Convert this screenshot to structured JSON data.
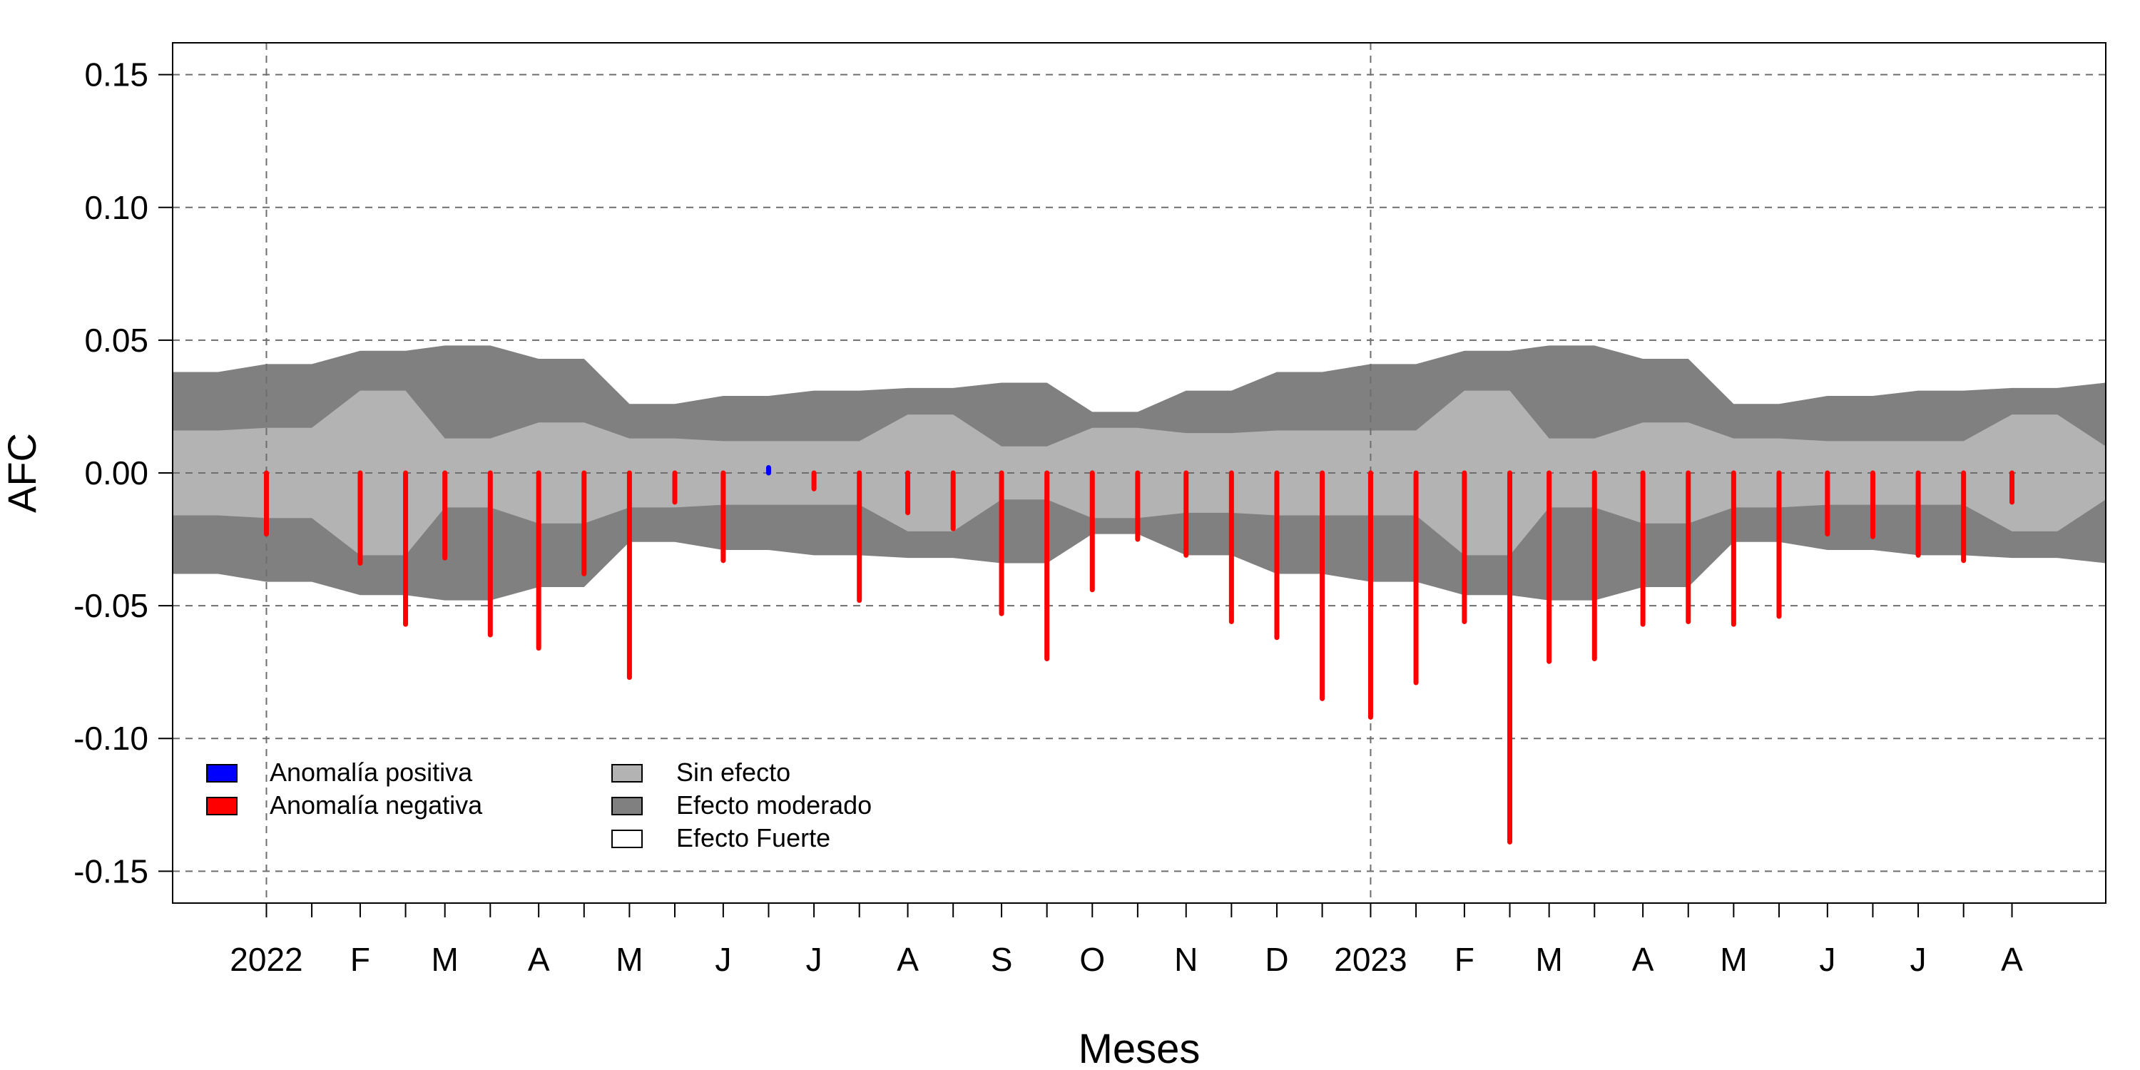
{
  "chart_data": {
    "type": "bar",
    "xlabel": "Meses",
    "ylabel": "AFC",
    "ylim": [
      -0.162,
      0.162
    ],
    "yticks": [
      -0.15,
      -0.1,
      -0.05,
      0.0,
      0.05,
      0.1,
      0.15
    ],
    "ytick_labels": [
      "-0.15",
      "-0.10",
      "-0.05",
      "0.00",
      "0.05",
      "0.10",
      "0.15"
    ],
    "grid": true,
    "legend_position": "bottom-left",
    "x_dates": [
      "2022-01-01",
      "2022-01-16",
      "2022-02-01",
      "2022-02-16",
      "2022-03-01",
      "2022-03-16",
      "2022-04-01",
      "2022-04-16",
      "2022-05-01",
      "2022-05-16",
      "2022-06-01",
      "2022-06-16",
      "2022-07-01",
      "2022-07-16",
      "2022-08-01",
      "2022-08-16",
      "2022-09-01",
      "2022-09-16",
      "2022-10-01",
      "2022-10-16",
      "2022-11-01",
      "2022-11-16",
      "2022-12-01",
      "2022-12-16",
      "2023-01-01",
      "2023-01-16",
      "2023-02-01",
      "2023-02-16",
      "2023-03-01",
      "2023-03-16",
      "2023-04-01",
      "2023-04-16",
      "2023-05-01",
      "2023-05-16",
      "2023-06-01",
      "2023-06-16",
      "2023-07-01",
      "2023-07-16",
      "2023-08-01"
    ],
    "x_range": [
      "2021-12-01",
      "2023-09-01"
    ],
    "month_labels": [
      {
        "date": "2022-01-01",
        "label": "2022"
      },
      {
        "date": "2022-02-01",
        "label": "F"
      },
      {
        "date": "2022-03-01",
        "label": "M"
      },
      {
        "date": "2022-04-01",
        "label": "A"
      },
      {
        "date": "2022-05-01",
        "label": "M"
      },
      {
        "date": "2022-06-01",
        "label": "J"
      },
      {
        "date": "2022-07-01",
        "label": "J"
      },
      {
        "date": "2022-08-01",
        "label": "A"
      },
      {
        "date": "2022-09-01",
        "label": "S"
      },
      {
        "date": "2022-10-01",
        "label": "O"
      },
      {
        "date": "2022-11-01",
        "label": "N"
      },
      {
        "date": "2022-12-01",
        "label": "D"
      },
      {
        "date": "2023-01-01",
        "label": "2023"
      },
      {
        "date": "2023-02-01",
        "label": "F"
      },
      {
        "date": "2023-03-01",
        "label": "M"
      },
      {
        "date": "2023-04-01",
        "label": "A"
      },
      {
        "date": "2023-05-01",
        "label": "M"
      },
      {
        "date": "2023-06-01",
        "label": "J"
      },
      {
        "date": "2023-07-01",
        "label": "J"
      },
      {
        "date": "2023-08-01",
        "label": "A"
      }
    ],
    "year_lines": [
      "2022-01-01",
      "2023-01-01"
    ],
    "series": [
      {
        "name": "Anomalía positiva",
        "color": "#0000ff",
        "points": [
          {
            "date": "2022-06-16",
            "value": 0.002
          }
        ]
      },
      {
        "name": "Anomalía negativa",
        "color": "#ff0000",
        "points": [
          {
            "date": "2022-01-01",
            "value": -0.023
          },
          {
            "date": "2022-02-01",
            "value": -0.034
          },
          {
            "date": "2022-02-16",
            "value": -0.057
          },
          {
            "date": "2022-03-01",
            "value": -0.032
          },
          {
            "date": "2022-03-16",
            "value": -0.061
          },
          {
            "date": "2022-04-01",
            "value": -0.066
          },
          {
            "date": "2022-04-16",
            "value": -0.038
          },
          {
            "date": "2022-05-01",
            "value": -0.077
          },
          {
            "date": "2022-05-16",
            "value": -0.011
          },
          {
            "date": "2022-06-01",
            "value": -0.033
          },
          {
            "date": "2022-07-01",
            "value": -0.006
          },
          {
            "date": "2022-07-16",
            "value": -0.048
          },
          {
            "date": "2022-08-01",
            "value": -0.015
          },
          {
            "date": "2022-08-16",
            "value": -0.021
          },
          {
            "date": "2022-09-01",
            "value": -0.053
          },
          {
            "date": "2022-09-16",
            "value": -0.07
          },
          {
            "date": "2022-10-01",
            "value": -0.044
          },
          {
            "date": "2022-10-16",
            "value": -0.025
          },
          {
            "date": "2022-11-01",
            "value": -0.031
          },
          {
            "date": "2022-11-16",
            "value": -0.056
          },
          {
            "date": "2022-12-01",
            "value": -0.062
          },
          {
            "date": "2022-12-16",
            "value": -0.085
          },
          {
            "date": "2023-01-01",
            "value": -0.092
          },
          {
            "date": "2023-01-16",
            "value": -0.079
          },
          {
            "date": "2023-02-01",
            "value": -0.056
          },
          {
            "date": "2023-02-16",
            "value": -0.139
          },
          {
            "date": "2023-03-01",
            "value": -0.071
          },
          {
            "date": "2023-03-16",
            "value": -0.07
          },
          {
            "date": "2023-04-01",
            "value": -0.057
          },
          {
            "date": "2023-04-16",
            "value": -0.056
          },
          {
            "date": "2023-05-01",
            "value": -0.057
          },
          {
            "date": "2023-05-16",
            "value": -0.054
          },
          {
            "date": "2023-06-01",
            "value": -0.023
          },
          {
            "date": "2023-06-16",
            "value": -0.024
          },
          {
            "date": "2023-07-01",
            "value": -0.031
          },
          {
            "date": "2023-07-16",
            "value": -0.033
          },
          {
            "date": "2023-08-01",
            "value": -0.011
          }
        ]
      }
    ],
    "bands": {
      "dates": [
        "2021-12-01",
        "2021-12-16",
        "2022-01-01",
        "2022-01-16",
        "2022-02-01",
        "2022-02-16",
        "2022-03-01",
        "2022-03-16",
        "2022-04-01",
        "2022-04-16",
        "2022-05-01",
        "2022-05-16",
        "2022-06-01",
        "2022-06-16",
        "2022-07-01",
        "2022-07-16",
        "2022-08-01",
        "2022-08-16",
        "2022-09-01",
        "2022-09-16",
        "2022-10-01",
        "2022-10-16",
        "2022-11-01",
        "2022-11-16",
        "2022-12-01",
        "2022-12-16",
        "2023-01-01",
        "2023-01-16",
        "2023-02-01",
        "2023-02-16",
        "2023-03-01",
        "2023-03-16",
        "2023-04-01",
        "2023-04-16",
        "2023-05-01",
        "2023-05-16",
        "2023-06-01",
        "2023-06-16",
        "2023-07-01",
        "2023-07-16",
        "2023-08-01",
        "2023-08-16",
        "2023-09-01"
      ],
      "sin_efecto": [
        0.016,
        0.016,
        0.017,
        0.017,
        0.031,
        0.031,
        0.013,
        0.013,
        0.019,
        0.019,
        0.013,
        0.013,
        0.012,
        0.012,
        0.012,
        0.012,
        0.022,
        0.022,
        0.01,
        0.01,
        0.017,
        0.017,
        0.015,
        0.015,
        0.016,
        0.016,
        0.016,
        0.016,
        0.031,
        0.031,
        0.013,
        0.013,
        0.019,
        0.019,
        0.013,
        0.013,
        0.012,
        0.012,
        0.012,
        0.012,
        0.022,
        0.022,
        0.01
      ],
      "efecto_moderado": [
        0.038,
        0.038,
        0.041,
        0.041,
        0.046,
        0.046,
        0.048,
        0.048,
        0.043,
        0.043,
        0.026,
        0.026,
        0.029,
        0.029,
        0.031,
        0.031,
        0.032,
        0.032,
        0.034,
        0.034,
        0.023,
        0.023,
        0.031,
        0.031,
        0.038,
        0.038,
        0.041,
        0.041,
        0.046,
        0.046,
        0.048,
        0.048,
        0.043,
        0.043,
        0.026,
        0.026,
        0.029,
        0.029,
        0.031,
        0.031,
        0.032,
        0.032,
        0.034
      ],
      "colors": {
        "sin_efecto": "#b3b3b3",
        "efecto_moderado": "#808080",
        "efecto_fuerte": "#ffffff"
      }
    },
    "legend": {
      "anomalies": [
        {
          "label": "Anomalía positiva",
          "color": "#0000ff"
        },
        {
          "label": "Anomalía negativa",
          "color": "#ff0000"
        }
      ],
      "effects": [
        {
          "label": "Sin efecto",
          "color": "#b3b3b3"
        },
        {
          "label": "Efecto moderado",
          "color": "#808080"
        },
        {
          "label": "Efecto Fuerte",
          "color": "#ffffff"
        }
      ]
    }
  }
}
